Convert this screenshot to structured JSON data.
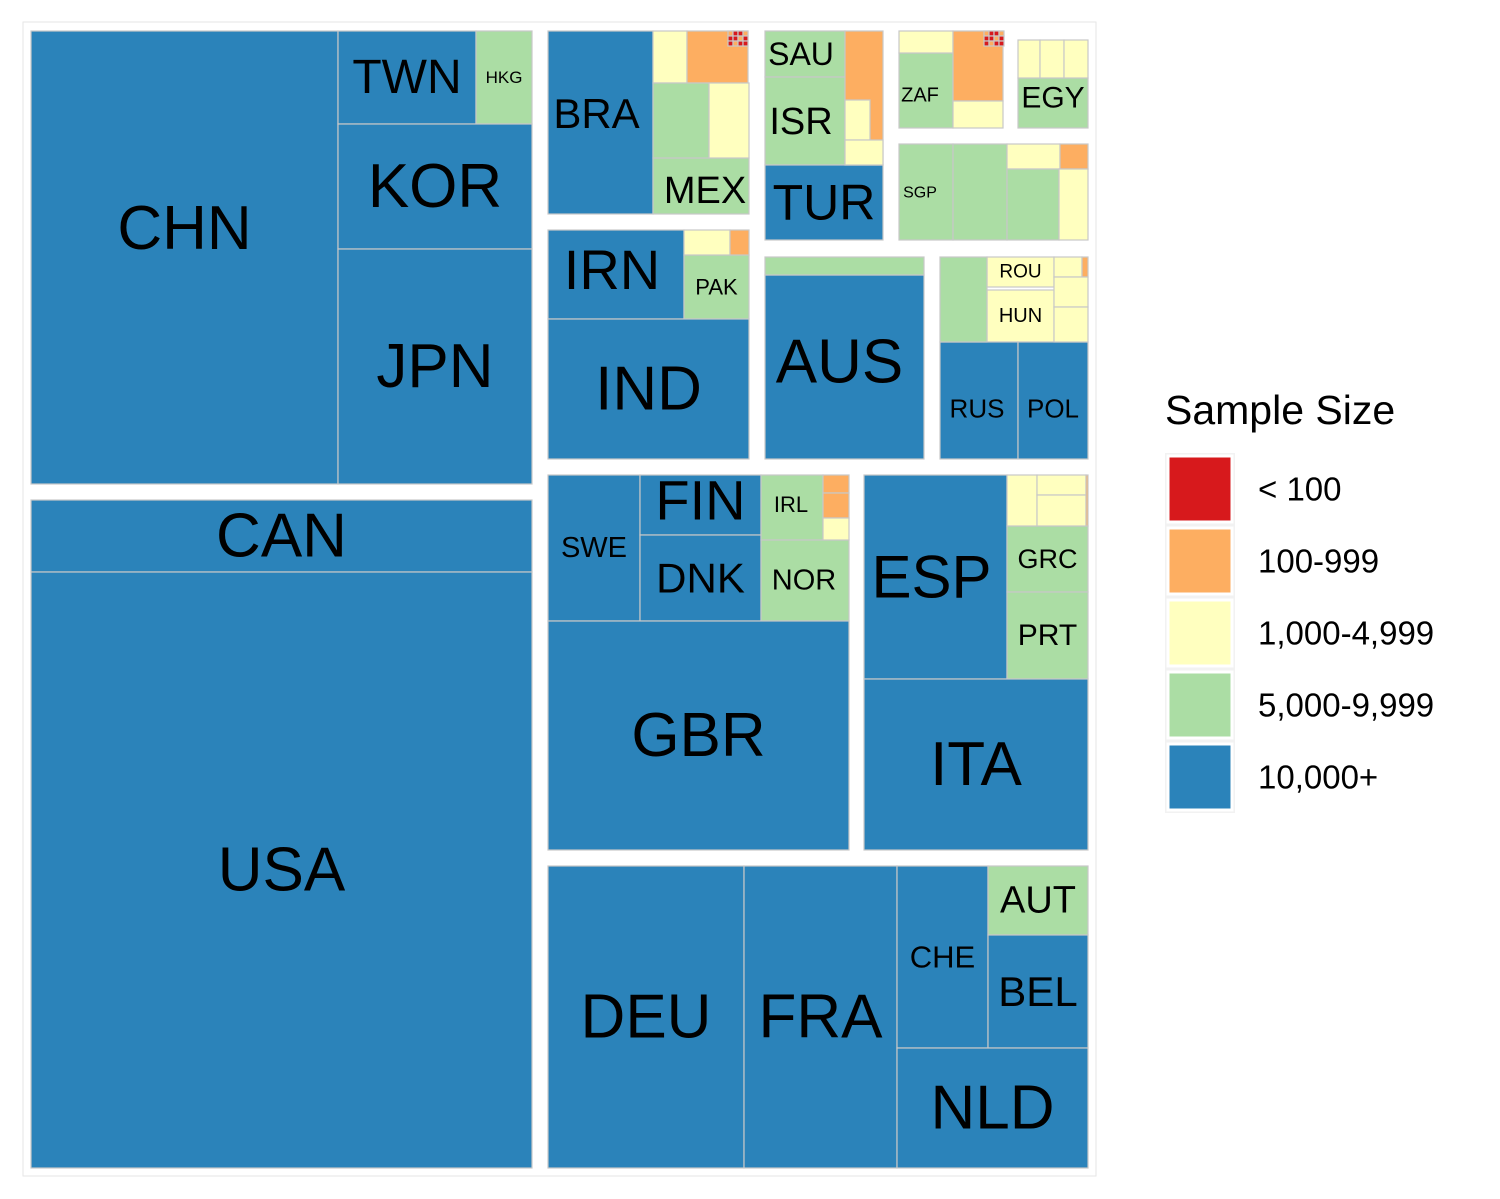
{
  "chart_data": {
    "type": "treemap",
    "title": "",
    "legend": {
      "title": "Sample Size",
      "placement": "right",
      "categories": [
        {
          "key": "lt100",
          "label": "< 100",
          "color": "#d7191c"
        },
        {
          "key": "c100",
          "label": "100-999",
          "color": "#fdae61"
        },
        {
          "key": "c1000",
          "label": "1,000-4,999",
          "color": "#ffffbf"
        },
        {
          "key": "c5000",
          "label": "5,000-9,999",
          "color": "#abdda4"
        },
        {
          "key": "c10000",
          "label": "10,000+",
          "color": "#2b83ba"
        }
      ]
    },
    "tiles": [
      {
        "label": "CHN",
        "category": "c10000"
      },
      {
        "label": "TWN",
        "category": "c10000"
      },
      {
        "label": "HKG",
        "category": "c5000"
      },
      {
        "label": "KOR",
        "category": "c10000"
      },
      {
        "label": "JPN",
        "category": "c10000"
      },
      {
        "label": "CAN",
        "category": "c10000"
      },
      {
        "label": "USA",
        "category": "c10000"
      },
      {
        "label": "BRA",
        "category": "c10000"
      },
      {
        "label": "MEX",
        "category": "c5000"
      },
      {
        "label": "SAU",
        "category": "c5000"
      },
      {
        "label": "ISR",
        "category": "c5000"
      },
      {
        "label": "TUR",
        "category": "c10000"
      },
      {
        "label": "ZAF",
        "category": "c5000"
      },
      {
        "label": "EGY",
        "category": "c5000"
      },
      {
        "label": "SGP",
        "category": "c5000"
      },
      {
        "label": "IRN",
        "category": "c10000"
      },
      {
        "label": "PAK",
        "category": "c5000"
      },
      {
        "label": "IND",
        "category": "c10000"
      },
      {
        "label": "AUS",
        "category": "c10000"
      },
      {
        "label": "ROU",
        "category": "c1000"
      },
      {
        "label": "HUN",
        "category": "c1000"
      },
      {
        "label": "RUS",
        "category": "c10000"
      },
      {
        "label": "POL",
        "category": "c10000"
      },
      {
        "label": "SWE",
        "category": "c10000"
      },
      {
        "label": "FIN",
        "category": "c10000"
      },
      {
        "label": "DNK",
        "category": "c10000"
      },
      {
        "label": "IRL",
        "category": "c5000"
      },
      {
        "label": "NOR",
        "category": "c5000"
      },
      {
        "label": "GBR",
        "category": "c10000"
      },
      {
        "label": "ESP",
        "category": "c10000"
      },
      {
        "label": "GRC",
        "category": "c5000"
      },
      {
        "label": "PRT",
        "category": "c5000"
      },
      {
        "label": "ITA",
        "category": "c10000"
      },
      {
        "label": "DEU",
        "category": "c10000"
      },
      {
        "label": "FRA",
        "category": "c10000"
      },
      {
        "label": "CHE",
        "category": "c10000"
      },
      {
        "label": "AUT",
        "category": "c5000"
      },
      {
        "label": "BEL",
        "category": "c10000"
      },
      {
        "label": "NLD",
        "category": "c10000"
      }
    ]
  }
}
